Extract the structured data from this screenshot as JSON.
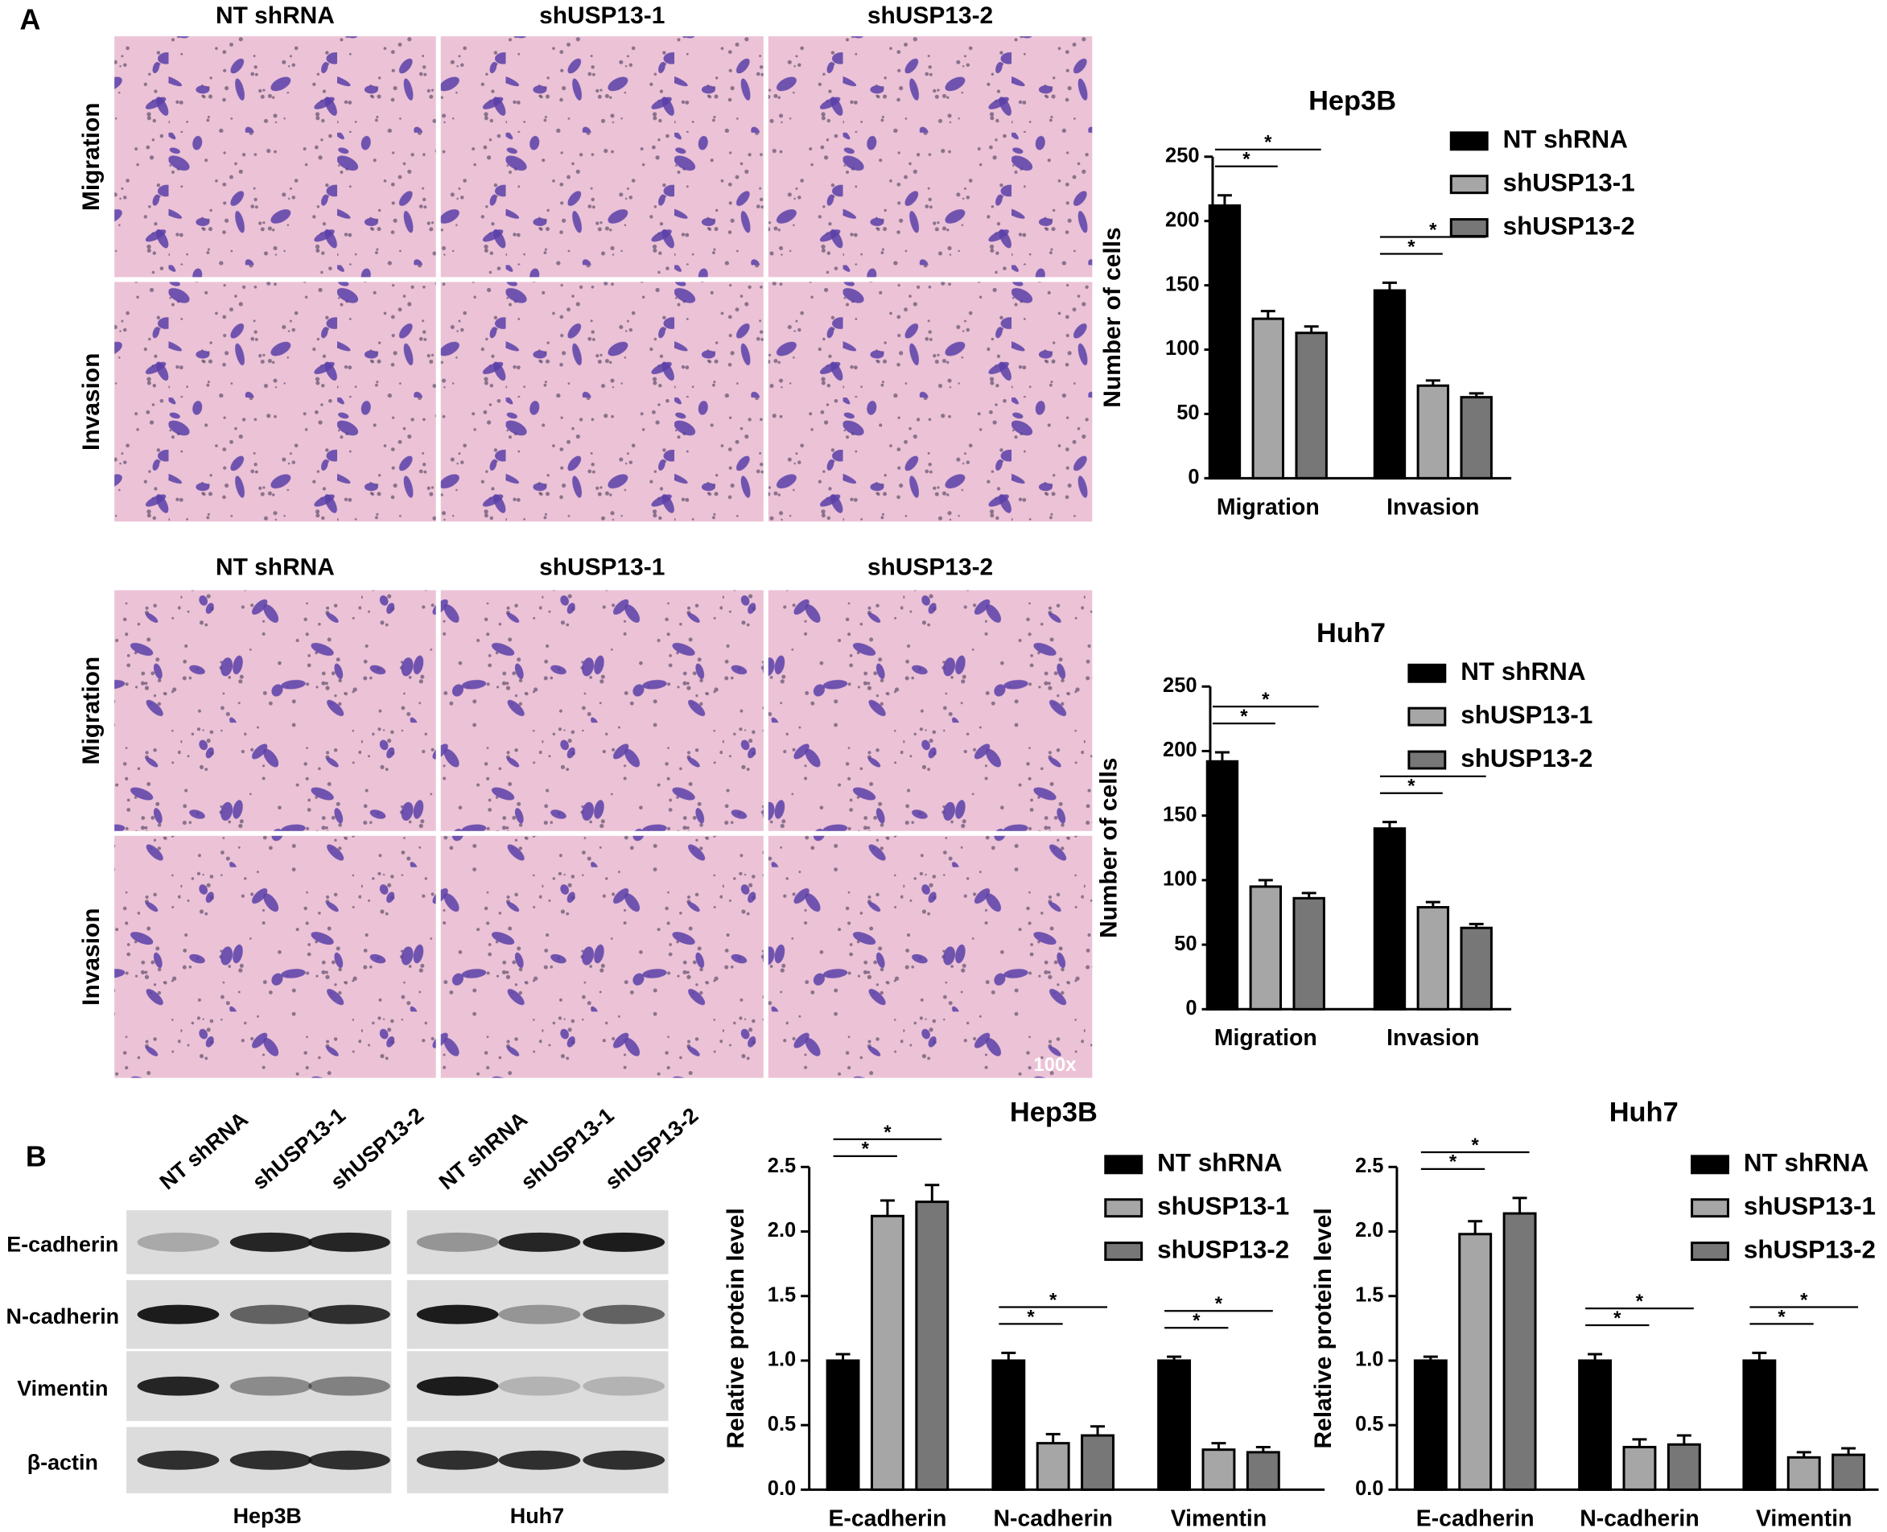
{
  "panel_a": {
    "label": "A",
    "groups": [
      "NT shRNA",
      "shUSP13-1",
      "shUSP13-2"
    ],
    "rows": [
      "Migration",
      "Invasion"
    ],
    "magnification": "100x"
  },
  "panel_b": {
    "label": "B",
    "lanes": [
      "NT shRNA",
      "shUSP13-1",
      "shUSP13-2"
    ],
    "blots": [
      "E-cadherin",
      "N-cadherin",
      "Vimentin",
      "β-actin"
    ],
    "cell_lines": [
      "Hep3B",
      "Huh7"
    ]
  },
  "chart_data": [
    {
      "type": "bar",
      "title": "Hep3B",
      "ylabel": "Number of cells",
      "categories": [
        "Migration",
        "Invasion"
      ],
      "series": [
        {
          "name": "NT shRNA",
          "color": "#000000",
          "values": [
            212,
            146
          ],
          "errors": [
            8,
            6
          ]
        },
        {
          "name": "shUSP13-1",
          "color": "#a6a6a6",
          "values": [
            124,
            72
          ],
          "errors": [
            6,
            4
          ]
        },
        {
          "name": "shUSP13-2",
          "color": "#777777",
          "values": [
            113,
            63
          ],
          "errors": [
            5,
            3
          ]
        }
      ],
      "ylim": [
        0,
        250
      ],
      "yticks": [
        0,
        50,
        100,
        150,
        200,
        250
      ],
      "significance_label": "*"
    },
    {
      "type": "bar",
      "title": "Huh7",
      "ylabel": "Number of cells",
      "categories": [
        "Migration",
        "Invasion"
      ],
      "series": [
        {
          "name": "NT shRNA",
          "color": "#000000",
          "values": [
            192,
            140
          ],
          "errors": [
            7,
            5
          ]
        },
        {
          "name": "shUSP13-1",
          "color": "#a6a6a6",
          "values": [
            95,
            79
          ],
          "errors": [
            5,
            4
          ]
        },
        {
          "name": "shUSP13-2",
          "color": "#777777",
          "values": [
            86,
            63
          ],
          "errors": [
            4,
            3
          ]
        }
      ],
      "ylim": [
        0,
        250
      ],
      "yticks": [
        0,
        50,
        100,
        150,
        200,
        250
      ],
      "significance_label": "*"
    },
    {
      "type": "bar",
      "title": "Hep3B",
      "ylabel": "Relative protein level",
      "categories": [
        "E-cadherin",
        "N-cadherin",
        "Vimentin"
      ],
      "series": [
        {
          "name": "NT shRNA",
          "color": "#000000",
          "values": [
            1.0,
            1.0,
            1.0
          ],
          "errors": [
            0.05,
            0.06,
            0.03
          ]
        },
        {
          "name": "shUSP13-1",
          "color": "#a6a6a6",
          "values": [
            2.12,
            0.36,
            0.31
          ],
          "errors": [
            0.12,
            0.07,
            0.05
          ]
        },
        {
          "name": "shUSP13-2",
          "color": "#777777",
          "values": [
            2.23,
            0.42,
            0.29
          ],
          "errors": [
            0.13,
            0.07,
            0.04
          ]
        }
      ],
      "ylim": [
        0,
        2.5
      ],
      "yticks": [
        {
          "value": 0,
          "label": "0.0"
        },
        0.5,
        {
          "value": 1,
          "label": "1.0"
        },
        1.5,
        {
          "value": 2,
          "label": "2.0"
        },
        2.5
      ],
      "significance_label": "*"
    },
    {
      "type": "bar",
      "title": "Huh7",
      "ylabel": "Relative protein level",
      "categories": [
        "E-cadherin",
        "N-cadherin",
        "Vimentin"
      ],
      "series": [
        {
          "name": "NT shRNA",
          "color": "#000000",
          "values": [
            1.0,
            1.0,
            1.0
          ],
          "errors": [
            0.03,
            0.05,
            0.06
          ]
        },
        {
          "name": "shUSP13-1",
          "color": "#a6a6a6",
          "values": [
            1.98,
            0.33,
            0.25
          ],
          "errors": [
            0.1,
            0.06,
            0.04
          ]
        },
        {
          "name": "shUSP13-2",
          "color": "#777777",
          "values": [
            2.14,
            0.35,
            0.27
          ],
          "errors": [
            0.12,
            0.07,
            0.05
          ]
        }
      ],
      "ylim": [
        0,
        2.5
      ],
      "yticks": [
        {
          "value": 0,
          "label": "0.0"
        },
        0.5,
        {
          "value": 1,
          "label": "1.0"
        },
        1.5,
        {
          "value": 2,
          "label": "2.0"
        },
        2.5
      ],
      "significance_label": "*"
    }
  ]
}
